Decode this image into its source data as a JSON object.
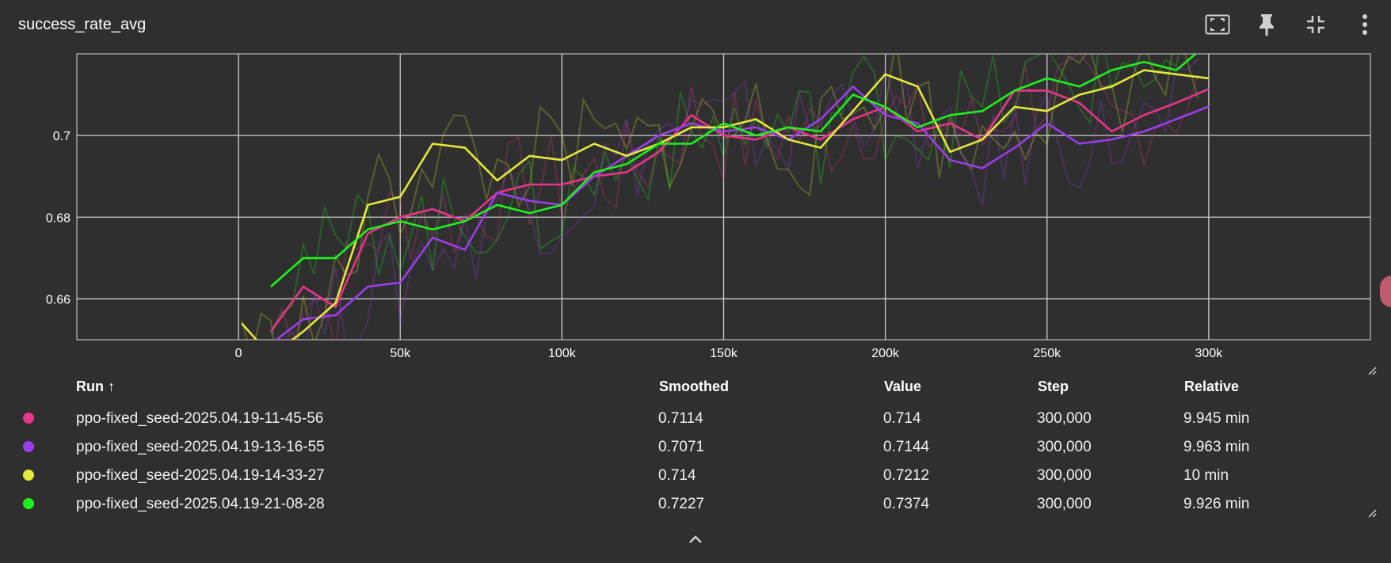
{
  "card": {
    "title": "success_rate_avg",
    "toolbar": [
      {
        "name": "fit-domain-icon"
      },
      {
        "name": "pin-icon"
      },
      {
        "name": "collapse-icon"
      },
      {
        "name": "more-vert-icon"
      }
    ]
  },
  "chart_data": {
    "type": "line",
    "title": "success_rate_avg",
    "xlabel": "",
    "ylabel": "",
    "x_ticks": [
      "0",
      "50k",
      "100k",
      "150k",
      "200k",
      "250k",
      "300k"
    ],
    "y_ticks": [
      "0.66",
      "0.68",
      "0.7"
    ],
    "xlim": [
      -50000,
      350000
    ],
    "ylim": [
      0.65,
      0.72
    ],
    "grid": true,
    "series": [
      {
        "name": "ppo-fixed_seed-2025.04.19-11-45-56",
        "color": "#e8348a",
        "x": [
          10000,
          20000,
          30000,
          40000,
          50000,
          60000,
          70000,
          80000,
          90000,
          100000,
          110000,
          120000,
          130000,
          140000,
          150000,
          160000,
          170000,
          180000,
          190000,
          200000,
          210000,
          220000,
          230000,
          240000,
          250000,
          260000,
          270000,
          280000,
          290000,
          300000
        ],
        "y": [
          0.652,
          0.663,
          0.658,
          0.676,
          0.68,
          0.682,
          0.679,
          0.686,
          0.688,
          0.688,
          0.69,
          0.691,
          0.696,
          0.705,
          0.7,
          0.699,
          0.702,
          0.699,
          0.704,
          0.707,
          0.701,
          0.703,
          0.699,
          0.711,
          0.711,
          0.708,
          0.701,
          0.705,
          0.708,
          0.7114
        ]
      },
      {
        "name": "ppo-fixed_seed-2025.04.19-13-16-55",
        "color": "#9b3de8",
        "x": [
          10000,
          20000,
          30000,
          40000,
          50000,
          60000,
          70000,
          80000,
          90000,
          100000,
          110000,
          120000,
          130000,
          140000,
          150000,
          160000,
          170000,
          180000,
          190000,
          200000,
          210000,
          220000,
          230000,
          240000,
          250000,
          260000,
          270000,
          280000,
          290000,
          300000
        ],
        "y": [
          0.649,
          0.655,
          0.656,
          0.663,
          0.664,
          0.675,
          0.672,
          0.686,
          0.684,
          0.683,
          0.69,
          0.695,
          0.7,
          0.703,
          0.701,
          0.702,
          0.699,
          0.704,
          0.712,
          0.705,
          0.703,
          0.694,
          0.692,
          0.697,
          0.703,
          0.698,
          0.699,
          0.701,
          0.704,
          0.7071
        ]
      },
      {
        "name": "ppo-fixed_seed-2025.04.19-14-33-27",
        "color": "#e3ea3a",
        "x": [
          1000,
          10000,
          20000,
          30000,
          40000,
          50000,
          60000,
          70000,
          80000,
          90000,
          100000,
          110000,
          120000,
          130000,
          140000,
          150000,
          160000,
          170000,
          180000,
          190000,
          200000,
          210000,
          220000,
          230000,
          240000,
          250000,
          260000,
          270000,
          280000,
          290000,
          300000
        ],
        "y": [
          0.654,
          0.646,
          0.652,
          0.659,
          0.683,
          0.685,
          0.698,
          0.697,
          0.689,
          0.695,
          0.694,
          0.698,
          0.695,
          0.698,
          0.702,
          0.702,
          0.704,
          0.699,
          0.697,
          0.706,
          0.715,
          0.712,
          0.696,
          0.699,
          0.707,
          0.706,
          0.71,
          0.712,
          0.716,
          0.715,
          0.714
        ]
      },
      {
        "name": "ppo-fixed_seed-2025.04.19-21-08-28",
        "color": "#1ef01e",
        "x": [
          10000,
          20000,
          30000,
          40000,
          50000,
          60000,
          70000,
          80000,
          90000,
          100000,
          110000,
          120000,
          130000,
          140000,
          150000,
          160000,
          170000,
          180000,
          190000,
          200000,
          210000,
          220000,
          230000,
          240000,
          250000,
          260000,
          270000,
          280000,
          290000,
          300000
        ],
        "y": [
          0.663,
          0.67,
          0.67,
          0.677,
          0.679,
          0.677,
          0.679,
          0.683,
          0.681,
          0.683,
          0.691,
          0.693,
          0.698,
          0.698,
          0.703,
          0.7,
          0.702,
          0.701,
          0.71,
          0.707,
          0.702,
          0.705,
          0.706,
          0.711,
          0.714,
          0.712,
          0.716,
          0.718,
          0.716,
          0.7227
        ]
      }
    ]
  },
  "table": {
    "headers": {
      "run": "Run ↑",
      "smoothed": "Smoothed",
      "value": "Value",
      "step": "Step",
      "relative": "Relative"
    },
    "rows": [
      {
        "color": "#e8348a",
        "run": "ppo-fixed_seed-2025.04.19-11-45-56",
        "smoothed": "0.7114",
        "value": "0.714",
        "step": "300,000",
        "relative": "9.945 min"
      },
      {
        "color": "#9b3de8",
        "run": "ppo-fixed_seed-2025.04.19-13-16-55",
        "smoothed": "0.7071",
        "value": "0.7144",
        "step": "300,000",
        "relative": "9.963 min"
      },
      {
        "color": "#e3ea3a",
        "run": "ppo-fixed_seed-2025.04.19-14-33-27",
        "smoothed": "0.714",
        "value": "0.7212",
        "step": "300,000",
        "relative": "10 min"
      },
      {
        "color": "#1ef01e",
        "run": "ppo-fixed_seed-2025.04.19-21-08-28",
        "smoothed": "0.7227",
        "value": "0.7374",
        "step": "300,000",
        "relative": "9.926 min"
      }
    ]
  }
}
